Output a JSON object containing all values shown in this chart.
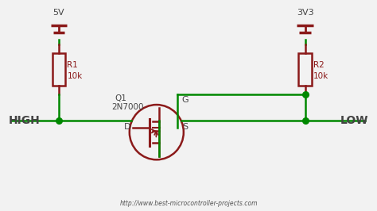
{
  "bg_color": "#f2f2f2",
  "wire_color": "#008800",
  "component_color": "#8b1a1a",
  "text_dark": "#444444",
  "url_text": "http://www.best-microcontroller-projects.com",
  "high_label": "HIGH",
  "low_label": "LOW",
  "v1_label": "5V",
  "v2_label": "3V3",
  "r1_label1": "R1",
  "r1_label2": "10k",
  "r2_label1": "R2",
  "r2_label2": "10k",
  "q1_label1": "Q1",
  "q1_label2": "2N7000",
  "g_label": "G",
  "d_label": "D",
  "s_label": "S",
  "xlim": [
    0,
    10
  ],
  "ylim": [
    0,
    5.5
  ]
}
